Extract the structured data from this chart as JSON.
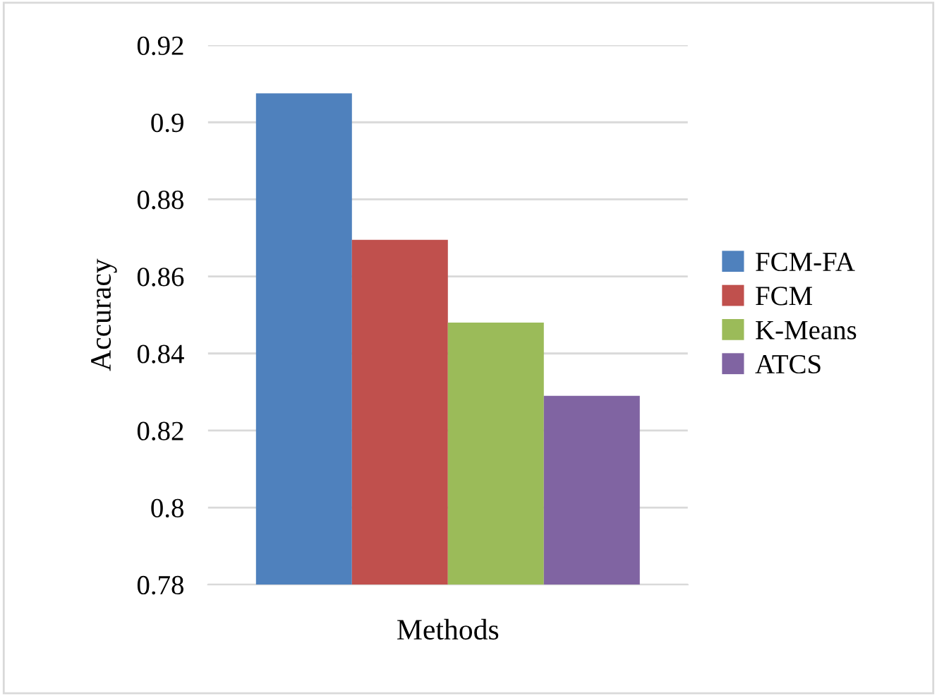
{
  "chart_data": {
    "type": "bar",
    "xlabel": "Methods",
    "ylabel": "Accuracy",
    "categories": [
      null
    ],
    "series": [
      {
        "name": "FCM-FA",
        "color": "#4f81bd",
        "values": [
          0.9075
        ]
      },
      {
        "name": "FCM",
        "color": "#c0504d",
        "values": [
          0.8695
        ]
      },
      {
        "name": "K-Means",
        "color": "#9bbb59",
        "values": [
          0.848
        ]
      },
      {
        "name": "ATCS",
        "color": "#8064a2",
        "values": [
          0.829
        ]
      }
    ],
    "ylim": [
      0.78,
      0.92
    ],
    "yticks": [
      0.78,
      0.8,
      0.82,
      0.84,
      0.86,
      0.88,
      0.9,
      0.92
    ],
    "grid": "y",
    "legend": "right"
  }
}
